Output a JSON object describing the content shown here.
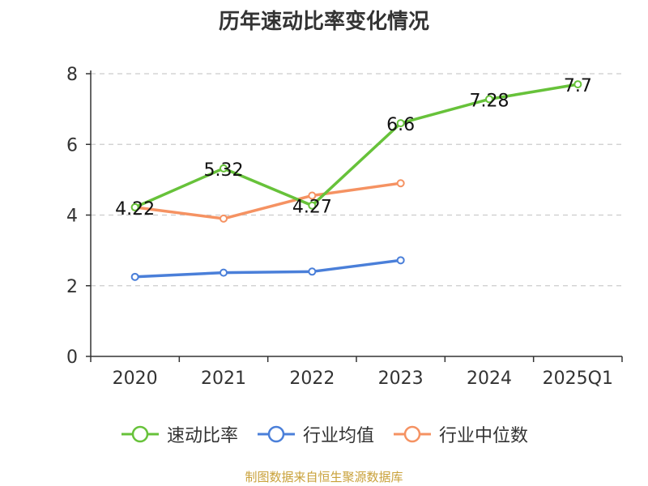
{
  "chart_data": {
    "type": "line",
    "title": "历年速动比率变化情况",
    "categories": [
      "2020",
      "2021",
      "2022",
      "2023",
      "2024",
      "2025Q1"
    ],
    "ylim": [
      0,
      8
    ],
    "yticks": [
      0,
      2,
      4,
      6,
      8
    ],
    "grid": true,
    "legend_position": "bottom",
    "series": [
      {
        "name": "速动比率",
        "color": "#67c23a",
        "values": [
          4.22,
          5.32,
          4.27,
          6.6,
          7.28,
          7.7
        ],
        "labels": [
          "4.22",
          "5.32",
          "4.27",
          "6.6",
          "7.28",
          "7.7"
        ]
      },
      {
        "name": "行业均值",
        "color": "#4a7fd9",
        "values": [
          2.25,
          2.37,
          2.4,
          2.72,
          null,
          null
        ]
      },
      {
        "name": "行业中位数",
        "color": "#f59262",
        "values": [
          4.22,
          3.9,
          4.55,
          4.9,
          null,
          null
        ]
      }
    ]
  },
  "source": "制图数据来自恒生聚源数据库"
}
